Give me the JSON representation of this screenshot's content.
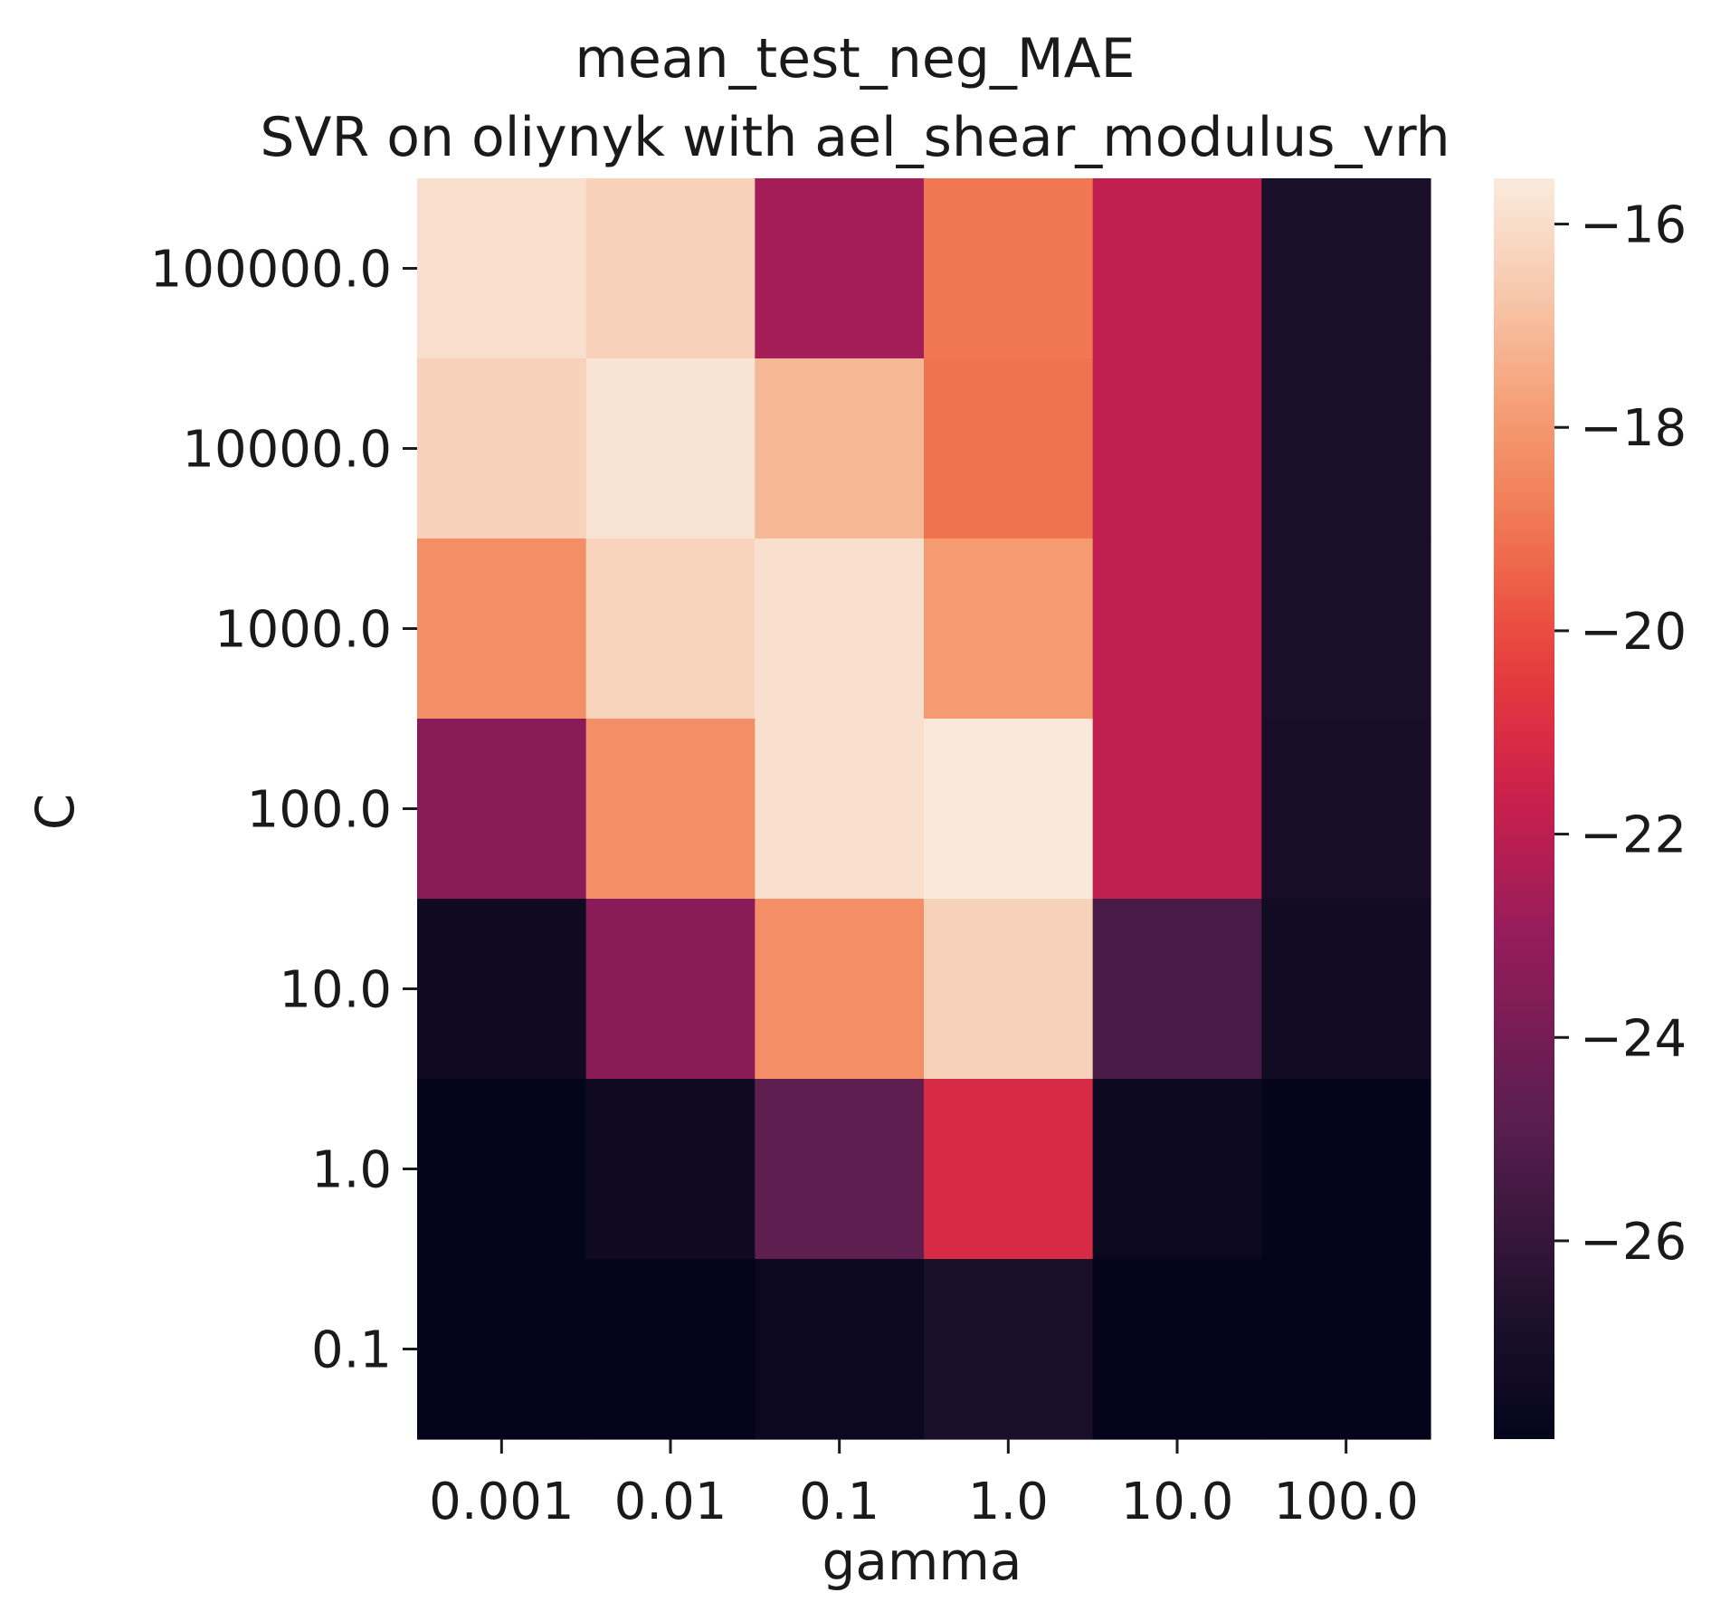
{
  "chart_data": {
    "type": "heatmap",
    "title": "mean_test_neg_MAE",
    "subtitle": "SVR on oliynyk with ael_shear_modulus_vrh",
    "xlabel": "gamma",
    "ylabel": "C",
    "x_categories": [
      "0.001",
      "0.01",
      "0.1",
      "1.0",
      "10.0",
      "100.0"
    ],
    "y_categories": [
      "100000.0",
      "10000.0",
      "1000.0",
      "100.0",
      "10.0",
      "1.0",
      "0.1"
    ],
    "values": [
      [
        -15.9,
        -16.4,
        -22.6,
        -19.0,
        -21.9,
        -26.9
      ],
      [
        -16.4,
        -15.8,
        -17.1,
        -19.1,
        -21.9,
        -26.9
      ],
      [
        -18.3,
        -16.3,
        -15.9,
        -17.9,
        -21.9,
        -26.9
      ],
      [
        -23.4,
        -18.3,
        -15.9,
        -15.6,
        -21.9,
        -27.0
      ],
      [
        -27.4,
        -23.4,
        -18.3,
        -16.4,
        -25.4,
        -27.3
      ],
      [
        -27.9,
        -27.4,
        -24.7,
        -21.1,
        -27.6,
        -27.9
      ],
      [
        -27.9,
        -27.9,
        -27.6,
        -26.9,
        -27.9,
        -27.9
      ]
    ],
    "colorbar": {
      "vmin": -27.95,
      "vmax": -15.55,
      "ticks": [
        -16,
        -18,
        -20,
        -22,
        -24,
        -26
      ],
      "tick_labels": [
        "−16",
        "−18",
        "−20",
        "−22",
        "−24",
        "−26"
      ]
    },
    "colormap": "rocket",
    "grid": false
  }
}
